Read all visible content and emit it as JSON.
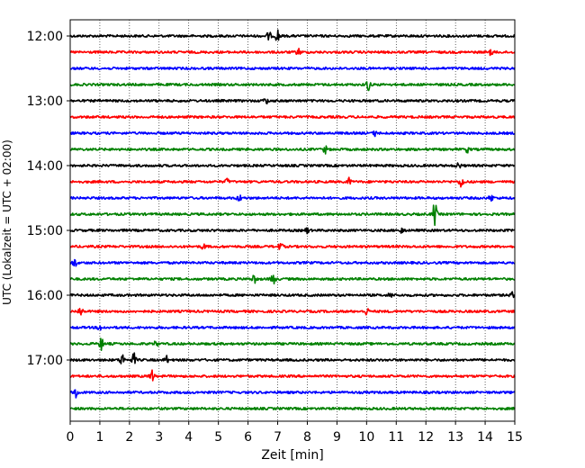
{
  "chart_data": {
    "type": "line",
    "title": "",
    "xlabel": "Zeit  [min]",
    "ylabel": "UTC (Lokalzeit = UTC + 02:00)",
    "xlim": [
      0,
      15
    ],
    "x_ticks": [
      0,
      1,
      2,
      3,
      4,
      5,
      6,
      7,
      8,
      9,
      10,
      11,
      12,
      13,
      14,
      15
    ],
    "x_tick_labels": [
      "0",
      "1",
      "2",
      "3",
      "4",
      "5",
      "6",
      "7",
      "8",
      "9",
      "10",
      "11",
      "12",
      "13",
      "14",
      "15"
    ],
    "y_tick_labels": [
      "12:00",
      "13:00",
      "14:00",
      "15:00",
      "16:00",
      "17:00"
    ],
    "grid": "vertical dotted at each minute",
    "trace_interval_minutes": 15,
    "trace_colors": [
      "#000000",
      "#ff0000",
      "#0000ff",
      "#008000"
    ],
    "traces": [
      {
        "start": "12:00",
        "events": [
          {
            "t": 7.0,
            "amp": 8
          },
          {
            "t": 6.7,
            "amp": 5
          }
        ]
      },
      {
        "start": "12:15",
        "events": [
          {
            "t": 7.7,
            "amp": 4
          },
          {
            "t": 14.2,
            "amp": 3
          }
        ]
      },
      {
        "start": "12:30",
        "events": []
      },
      {
        "start": "12:45",
        "events": [
          {
            "t": 10.05,
            "amp": 7
          }
        ]
      },
      {
        "start": "13:00",
        "events": [
          {
            "t": 6.6,
            "amp": 4
          }
        ]
      },
      {
        "start": "13:15",
        "events": []
      },
      {
        "start": "13:30",
        "events": [
          {
            "t": 10.3,
            "amp": 3
          }
        ]
      },
      {
        "start": "13:45",
        "events": [
          {
            "t": 8.6,
            "amp": 4
          },
          {
            "t": 13.4,
            "amp": 3
          }
        ]
      },
      {
        "start": "14:00",
        "events": [
          {
            "t": 13.1,
            "amp": 4
          }
        ]
      },
      {
        "start": "14:15",
        "events": [
          {
            "t": 13.2,
            "amp": 7
          },
          {
            "t": 9.4,
            "amp": 4
          },
          {
            "t": 5.3,
            "amp": 3
          }
        ]
      },
      {
        "start": "14:30",
        "events": [
          {
            "t": 5.7,
            "amp": 4
          },
          {
            "t": 14.2,
            "amp": 4
          }
        ]
      },
      {
        "start": "14:45",
        "events": [
          {
            "t": 12.3,
            "amp": 14
          }
        ]
      },
      {
        "start": "15:00",
        "events": [
          {
            "t": 8.0,
            "amp": 3
          },
          {
            "t": 11.2,
            "amp": 3
          }
        ]
      },
      {
        "start": "15:15",
        "events": [
          {
            "t": 7.1,
            "amp": 5
          },
          {
            "t": 4.5,
            "amp": 3
          }
        ]
      },
      {
        "start": "15:30",
        "events": [
          {
            "t": 0.15,
            "amp": 5
          }
        ]
      },
      {
        "start": "15:45",
        "events": [
          {
            "t": 6.85,
            "amp": 8
          },
          {
            "t": 6.2,
            "amp": 5
          }
        ]
      },
      {
        "start": "16:00",
        "events": [
          {
            "t": 10.8,
            "amp": 3
          },
          {
            "t": 14.9,
            "amp": 3
          }
        ]
      },
      {
        "start": "16:15",
        "events": [
          {
            "t": 0.35,
            "amp": 6
          },
          {
            "t": 10.0,
            "amp": 4
          }
        ]
      },
      {
        "start": "16:30",
        "events": [
          {
            "t": 1.0,
            "amp": 3
          }
        ]
      },
      {
        "start": "16:45",
        "events": [
          {
            "t": 1.05,
            "amp": 7
          },
          {
            "t": 2.9,
            "amp": 3
          }
        ]
      },
      {
        "start": "17:00",
        "events": [
          {
            "t": 1.75,
            "amp": 8
          },
          {
            "t": 2.15,
            "amp": 7
          },
          {
            "t": 3.25,
            "amp": 4
          }
        ]
      },
      {
        "start": "17:15",
        "events": [
          {
            "t": 2.75,
            "amp": 8
          }
        ]
      },
      {
        "start": "17:30",
        "events": [
          {
            "t": 0.2,
            "amp": 6
          }
        ]
      },
      {
        "start": "17:45",
        "events": []
      }
    ]
  }
}
